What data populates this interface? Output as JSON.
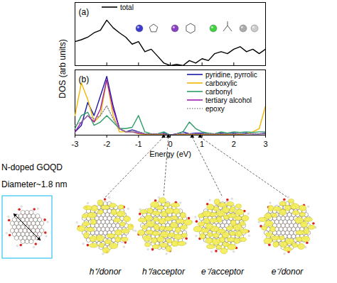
{
  "chart_data": [
    {
      "type": "line",
      "title": "(a)",
      "x": [
        -3.0,
        -2.8,
        -2.6,
        -2.4,
        -2.2,
        -2.0,
        -1.8,
        -1.6,
        -1.4,
        -1.2,
        -1.0,
        -0.8,
        -0.6,
        -0.4,
        -0.2,
        0.0,
        0.2,
        0.4,
        0.6,
        0.8,
        1.0,
        1.2,
        1.4,
        1.6,
        1.8,
        2.0,
        2.2,
        2.4,
        2.6,
        2.8,
        3.0
      ],
      "series": [
        {
          "name": "total",
          "color": "#000000",
          "values": [
            0.38,
            0.41,
            0.45,
            0.52,
            0.56,
            0.72,
            0.6,
            0.52,
            0.45,
            0.34,
            0.38,
            0.22,
            0.26,
            0.15,
            0.04,
            0.0,
            0.02,
            0.0,
            0.08,
            0.04,
            0.11,
            0.08,
            0.19,
            0.22,
            0.19,
            0.26,
            0.3,
            0.22,
            0.26,
            0.19,
            0.26
          ]
        }
      ],
      "xlim": [
        -3,
        3
      ],
      "xticks": [
        -3,
        -2,
        -1,
        0,
        1,
        2,
        3
      ],
      "ylim": [
        0,
        1
      ],
      "tick_labels": false,
      "legend": "upper left"
    },
    {
      "type": "line",
      "title": "(b)",
      "xlabel": "Energy (eV)",
      "x": [
        -3.0,
        -2.8,
        -2.6,
        -2.4,
        -2.2,
        -2.0,
        -1.8,
        -1.6,
        -1.4,
        -1.2,
        -1.0,
        -0.8,
        -0.6,
        -0.4,
        -0.2,
        0.0,
        0.2,
        0.4,
        0.6,
        0.8,
        1.0,
        1.2,
        1.4,
        1.6,
        1.8,
        2.0,
        2.2,
        2.4,
        2.6,
        2.8,
        3.0
      ],
      "series": [
        {
          "name": "pyridine, pyrrolic",
          "color": "#1a1aa6",
          "values": [
            0.05,
            0.15,
            0.5,
            0.3,
            0.6,
            0.9,
            0.45,
            0.1,
            0.05,
            0.08,
            0.05,
            0.02,
            0.02,
            0.01,
            0.03,
            0.0,
            0.02,
            0.05,
            0.02,
            0.03,
            0.03,
            0.02,
            0.02,
            0.03,
            0.02,
            0.03,
            0.02,
            0.03,
            0.02,
            0.02,
            0.03
          ]
        },
        {
          "name": "carboxylic",
          "color": "#f2b600",
          "values": [
            0.3,
            0.8,
            0.55,
            0.2,
            0.3,
            0.85,
            0.3,
            0.05,
            0.05,
            0.05,
            0.02,
            0.01,
            0.01,
            0.01,
            0.01,
            0.0,
            0.01,
            0.01,
            0.01,
            0.01,
            0.01,
            0.01,
            0.01,
            0.01,
            0.01,
            0.01,
            0.01,
            0.02,
            0.05,
            0.1,
            0.45
          ]
        },
        {
          "name": "carbonyl",
          "color": "#2e9e6a",
          "values": [
            0.1,
            0.3,
            0.35,
            0.15,
            0.2,
            0.3,
            0.2,
            0.1,
            0.1,
            0.12,
            0.3,
            0.05,
            0.02,
            0.02,
            0.05,
            0.0,
            0.02,
            0.05,
            0.2,
            0.1,
            0.05,
            0.03,
            0.02,
            0.05,
            0.03,
            0.05,
            0.04,
            0.05,
            0.04,
            0.05,
            0.05
          ]
        },
        {
          "name": "tertiary alcohol",
          "color": "#9a1fb0",
          "values": [
            0.05,
            0.2,
            0.3,
            0.2,
            0.4,
            0.85,
            0.4,
            0.1,
            0.05,
            0.05,
            0.03,
            0.02,
            0.02,
            0.02,
            0.02,
            0.0,
            0.02,
            0.02,
            0.02,
            0.02,
            0.02,
            0.02,
            0.02,
            0.02,
            0.02,
            0.02,
            0.02,
            0.02,
            0.02,
            0.02,
            0.02
          ]
        },
        {
          "name": "epoxy",
          "color": "#8c8c8c",
          "line_style": "dotted",
          "values": [
            0.15,
            0.2,
            0.3,
            0.25,
            0.3,
            0.45,
            0.25,
            0.1,
            0.05,
            0.05,
            0.05,
            0.02,
            0.02,
            0.02,
            0.02,
            0.0,
            0.02,
            0.02,
            0.02,
            0.02,
            0.02,
            0.02,
            0.02,
            0.02,
            0.02,
            0.02,
            0.02,
            0.02,
            0.02,
            0.02,
            0.02
          ]
        }
      ],
      "xlim": [
        -3,
        3
      ],
      "xticks": [
        -3,
        -2,
        -1,
        0,
        1,
        2,
        3
      ],
      "ylim": [
        0,
        1
      ],
      "tick_labels": "x",
      "legend": "upper right"
    }
  ],
  "ylabel": "DOS (arb units)",
  "inset": {
    "title": "N-doped GOQD",
    "diameter_label": "Diameter~1.8 nm"
  },
  "states": [
    {
      "label": "h⁺/donor",
      "energy": -0.2
    },
    {
      "label": "h⁺/acceptor",
      "energy": -0.05
    },
    {
      "label": "e⁻/acceptor",
      "energy": 0.7
    },
    {
      "label": "e⁻/donor",
      "energy": 0.95
    }
  ]
}
